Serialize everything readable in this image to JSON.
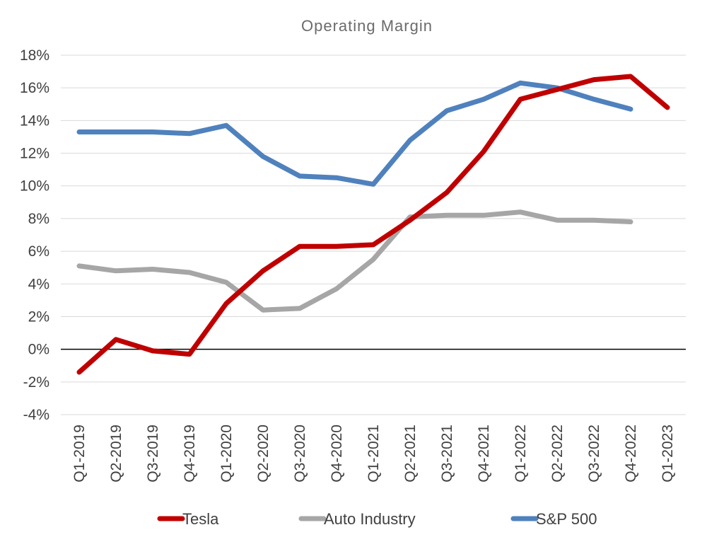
{
  "chart_data": {
    "type": "line",
    "title": "Operating Margin",
    "categories": [
      "Q1-2019",
      "Q2-2019",
      "Q3-2019",
      "Q4-2019",
      "Q1-2020",
      "Q2-2020",
      "Q3-2020",
      "Q4-2020",
      "Q1-2021",
      "Q2-2021",
      "Q3-2021",
      "Q4-2021",
      "Q1-2022",
      "Q2-2022",
      "Q3-2022",
      "Q4-2022",
      "Q1-2023"
    ],
    "ylim": [
      -4,
      18
    ],
    "yticks": [
      -4,
      -2,
      0,
      2,
      4,
      6,
      8,
      10,
      12,
      14,
      16,
      18
    ],
    "ytick_labels": [
      "-4%",
      "-2%",
      "0%",
      "2%",
      "4%",
      "6%",
      "8%",
      "10%",
      "12%",
      "14%",
      "16%",
      "18%"
    ],
    "grid": true,
    "legend_position": "bottom",
    "series": [
      {
        "name": "Tesla",
        "color": "#c00000",
        "values": [
          -1.4,
          0.6,
          -0.1,
          -0.3,
          2.8,
          4.8,
          6.3,
          6.3,
          6.4,
          7.9,
          9.6,
          12.1,
          15.3,
          15.9,
          16.5,
          16.7,
          14.8
        ]
      },
      {
        "name": "Auto Industry",
        "color": "#a6a6a6",
        "values": [
          5.1,
          4.8,
          4.9,
          4.7,
          4.1,
          2.4,
          2.5,
          3.7,
          5.5,
          8.1,
          8.2,
          8.2,
          8.4,
          7.9,
          7.9,
          7.8,
          null
        ]
      },
      {
        "name": "S&P 500",
        "color": "#4f81bd",
        "values": [
          13.3,
          13.3,
          13.3,
          13.2,
          13.7,
          11.8,
          10.6,
          10.5,
          10.1,
          12.8,
          14.6,
          15.3,
          16.3,
          16.0,
          15.3,
          14.7,
          null
        ]
      }
    ]
  }
}
